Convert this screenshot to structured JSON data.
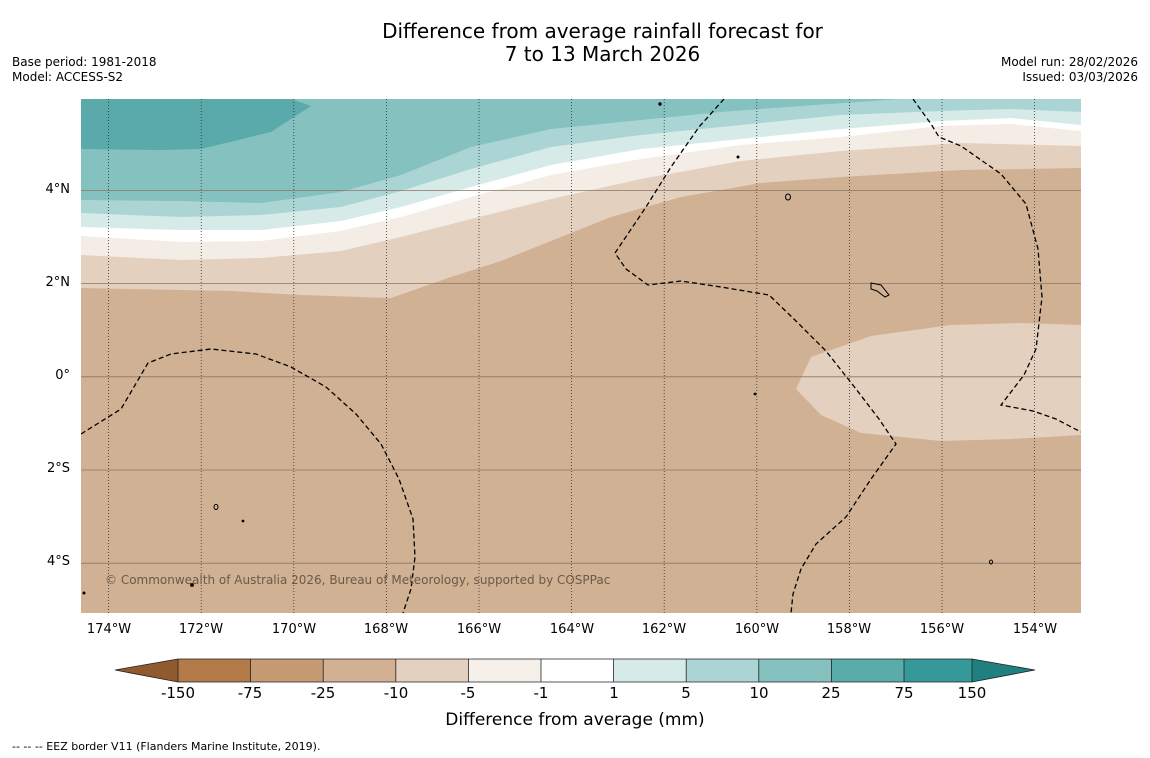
{
  "title": {
    "line1": "Difference from average rainfall forecast for",
    "line2": "7 to 13 March 2026"
  },
  "meta_left": {
    "base_period": "Base period: 1981-2018",
    "model": "Model: ACCESS-S2"
  },
  "meta_right": {
    "model_run": "Model run: 28/02/2026",
    "issued": "Issued: 03/03/2026"
  },
  "map": {
    "extent": {
      "lon_min": -174.6,
      "lon_max": -153.0,
      "lat_min": -5.2,
      "lat_max": 5.8
    },
    "lat_labels": [
      "4°N",
      "2°N",
      "0°",
      "2°S",
      "4°S"
    ],
    "lon_labels": [
      "174°W",
      "172°W",
      "170°W",
      "168°W",
      "166°W",
      "164°W",
      "162°W",
      "160°W",
      "158°W",
      "156°W",
      "154°W"
    ],
    "copyright": "© Commonwealth of Australia 2026, Bureau of Meteorology, supported by COSPPac"
  },
  "colorbar": {
    "tick_labels": [
      "-150",
      "-75",
      "-25",
      "-10",
      "-5",
      "-1",
      "1",
      "5",
      "10",
      "25",
      "75",
      "150"
    ],
    "colors": [
      "#8f5a2d",
      "#b27a46",
      "#c69b73",
      "#d2b092",
      "#e3d0bf",
      "#f5f0ea",
      "#ffffff",
      "#d6eae8",
      "#abd5d5",
      "#84c1bf",
      "#5aacab",
      "#35999a",
      "#207f7f"
    ],
    "label": "Difference from average (mm)"
  },
  "footnote": "--  --  -- EEZ border V11 (Flanders Marine Institute, 2019)."
}
